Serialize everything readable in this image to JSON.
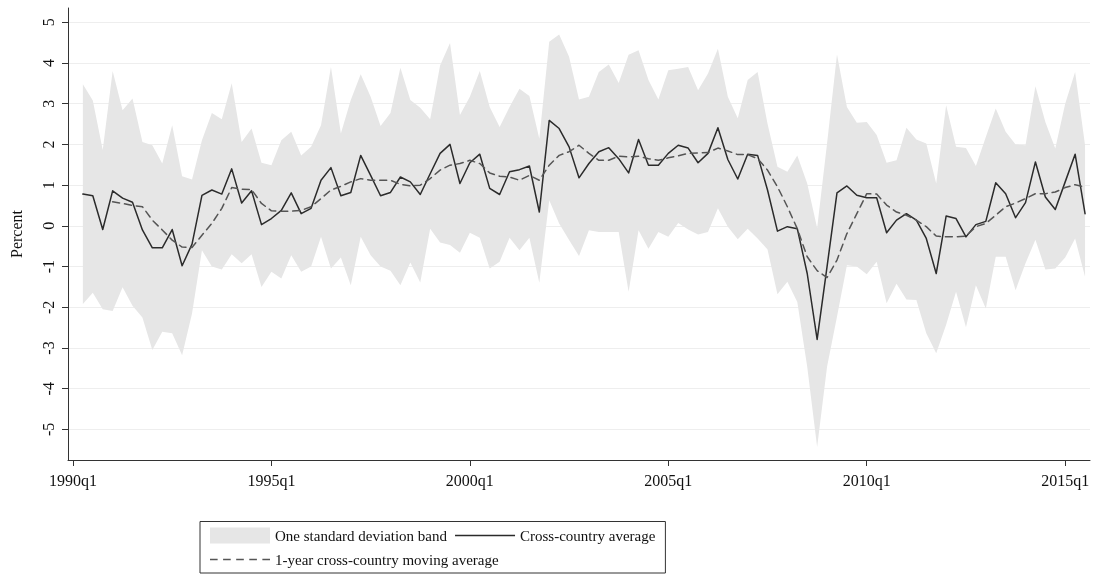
{
  "chart_data": {
    "type": "line",
    "ylabel": "Percent",
    "annotations": [
      "One standard deviation band"
    ],
    "categories": [
      "1990q1",
      null,
      null,
      null,
      null,
      null,
      null,
      null,
      null,
      null,
      null,
      null,
      null,
      null,
      null,
      null,
      null,
      null,
      null,
      null,
      "1995q1",
      null,
      null,
      null,
      null,
      null,
      null,
      null,
      null,
      null,
      null,
      null,
      null,
      null,
      null,
      null,
      null,
      null,
      null,
      null,
      "2000q1",
      null,
      null,
      null,
      null,
      null,
      null,
      null,
      null,
      null,
      null,
      null,
      null,
      null,
      null,
      null,
      null,
      null,
      null,
      null,
      "2005q1",
      null,
      null,
      null,
      null,
      null,
      null,
      null,
      null,
      null,
      null,
      null,
      null,
      null,
      null,
      null,
      null,
      null,
      null,
      null,
      "2010q1",
      null,
      null,
      null,
      null,
      null,
      null,
      null,
      null,
      null,
      null,
      null,
      null,
      null,
      null,
      null,
      null,
      null,
      null,
      null,
      "2015q1",
      null,
      null
    ],
    "series": [
      {
        "name": "Cross-country average",
        "color": "#2b2b2b",
        "line_style": "solid",
        "values": [
          null,
          0.78,
          0.74,
          -0.09,
          0.86,
          0.68,
          0.58,
          -0.1,
          -0.54,
          -0.54,
          -0.09,
          -0.98,
          -0.45,
          0.75,
          0.88,
          0.78,
          1.4,
          0.56,
          0.86,
          0.03,
          0.18,
          0.38,
          0.81,
          0.3,
          0.43,
          1.12,
          1.43,
          0.74,
          0.82,
          1.73,
          1.24,
          0.74,
          0.82,
          1.2,
          1.08,
          0.77,
          1.28,
          1.78,
          2.0,
          1.04,
          1.55,
          1.76,
          0.92,
          0.77,
          1.33,
          1.38,
          1.47,
          0.34,
          2.59,
          2.39,
          1.94,
          1.18,
          1.53,
          1.82,
          1.92,
          1.65,
          1.3,
          2.12,
          1.49,
          1.49,
          1.78,
          1.98,
          1.91,
          1.55,
          1.78,
          2.41,
          1.63,
          1.15,
          1.76,
          1.73,
          0.88,
          -0.13,
          -0.02,
          -0.07,
          -1.17,
          -2.79,
          -1.0,
          0.81,
          0.98,
          0.75,
          0.69,
          0.69,
          -0.17,
          0.14,
          0.3,
          0.14,
          -0.31,
          -1.17,
          0.24,
          0.18,
          -0.27,
          0.03,
          0.11,
          1.06,
          0.79,
          0.2,
          0.57,
          1.57,
          0.71,
          0.4,
          1.08,
          1.76,
          0.3
        ],
        "upper": [
          null,
          3.48,
          3.08,
          1.86,
          3.8,
          2.84,
          3.13,
          2.06,
          1.98,
          1.53,
          2.47,
          1.22,
          1.14,
          2.1,
          2.77,
          2.62,
          3.5,
          2.06,
          2.39,
          1.55,
          1.49,
          2.1,
          2.31,
          1.73,
          1.94,
          2.47,
          3.9,
          2.27,
          3.09,
          3.72,
          3.17,
          2.45,
          2.77,
          3.88,
          3.09,
          2.9,
          2.62,
          3.94,
          4.49,
          2.72,
          3.17,
          3.8,
          2.92,
          2.43,
          2.92,
          3.37,
          3.19,
          2.14,
          4.52,
          4.7,
          4.15,
          3.1,
          3.17,
          3.78,
          3.96,
          3.51,
          4.2,
          4.31,
          3.58,
          3.1,
          3.82,
          3.86,
          3.9,
          3.33,
          3.74,
          4.35,
          3.17,
          2.64,
          3.58,
          3.78,
          2.51,
          1.45,
          1.33,
          1.73,
          1.04,
          -0.05,
          2.02,
          4.21,
          2.92,
          2.53,
          2.55,
          2.23,
          1.55,
          1.61,
          2.41,
          2.12,
          2.02,
          1.04,
          2.96,
          1.94,
          1.91,
          1.47,
          2.18,
          2.88,
          2.31,
          2.0,
          1.98,
          3.43,
          2.55,
          1.9,
          3.0,
          3.78,
          1.98
        ],
        "lower": [
          null,
          -1.92,
          -1.64,
          -2.05,
          -2.09,
          -1.51,
          -1.96,
          -2.25,
          -3.05,
          -2.6,
          -2.64,
          -3.18,
          -2.15,
          -0.6,
          -1.0,
          -1.07,
          -0.7,
          -0.92,
          -0.7,
          -1.5,
          -1.13,
          -1.29,
          -0.72,
          -1.13,
          -1.0,
          -0.27,
          -1.05,
          -0.78,
          -1.46,
          -0.27,
          -0.72,
          -1.0,
          -1.1,
          -1.46,
          -0.9,
          -1.39,
          -0.07,
          -0.41,
          -0.47,
          -0.66,
          -0.17,
          -0.29,
          -1.05,
          -0.88,
          -0.29,
          -0.6,
          -0.29,
          -1.4,
          0.63,
          0.06,
          -0.35,
          -0.74,
          -0.11,
          -0.15,
          -0.15,
          -0.15,
          -1.62,
          -0.11,
          -0.56,
          -0.15,
          -0.27,
          0.07,
          -0.09,
          -0.21,
          -0.15,
          0.43,
          -0.02,
          -0.33,
          -0.07,
          -0.31,
          -0.58,
          -1.68,
          -1.37,
          -1.87,
          -3.46,
          -5.43,
          -3.46,
          -2.23,
          -0.97,
          -1.0,
          -1.19,
          -0.88,
          -1.9,
          -1.42,
          -1.81,
          -1.82,
          -2.64,
          -3.13,
          -2.43,
          -1.62,
          -2.49,
          -1.46,
          -2.03,
          -0.76,
          -0.76,
          -1.58,
          -0.92,
          -0.34,
          -1.07,
          -1.05,
          -0.78,
          -0.31,
          -1.25
        ]
      },
      {
        "name": "1-year cross-country moving average",
        "color": "#555555",
        "line_style": "dashed",
        "values": [
          null,
          null,
          null,
          null,
          0.59,
          0.55,
          0.5,
          0.47,
          0.14,
          -0.1,
          -0.35,
          -0.52,
          -0.53,
          -0.23,
          0.06,
          0.43,
          0.94,
          0.9,
          0.89,
          0.55,
          0.37,
          0.36,
          0.36,
          0.38,
          0.47,
          0.67,
          0.88,
          0.97,
          1.08,
          1.16,
          1.12,
          1.12,
          1.12,
          1.02,
          0.98,
          1.0,
          1.16,
          1.37,
          1.49,
          1.53,
          1.61,
          1.53,
          1.3,
          1.22,
          1.2,
          1.12,
          1.24,
          1.12,
          1.49,
          1.73,
          1.82,
          1.98,
          1.78,
          1.61,
          1.61,
          1.71,
          1.69,
          1.71,
          1.65,
          1.61,
          1.67,
          1.72,
          1.78,
          1.79,
          1.8,
          1.91,
          1.84,
          1.75,
          1.75,
          1.65,
          1.37,
          0.96,
          0.47,
          -0.07,
          -0.76,
          -1.1,
          -1.27,
          -0.84,
          -0.19,
          0.3,
          0.79,
          0.78,
          0.51,
          0.34,
          0.26,
          0.14,
          -0.02,
          -0.25,
          -0.27,
          -0.27,
          -0.25,
          -0.02,
          0.06,
          0.26,
          0.47,
          0.56,
          0.67,
          0.79,
          0.79,
          0.83,
          0.94,
          1.01,
          0.95
        ]
      }
    ],
    "ylim": [
      -5.75,
      5.35
    ],
    "yticks": [
      -5,
      -4,
      -3,
      -2,
      -1,
      0,
      1,
      2,
      3,
      4,
      5
    ],
    "grid": "y",
    "legend": "bottom",
    "marker": "none"
  }
}
